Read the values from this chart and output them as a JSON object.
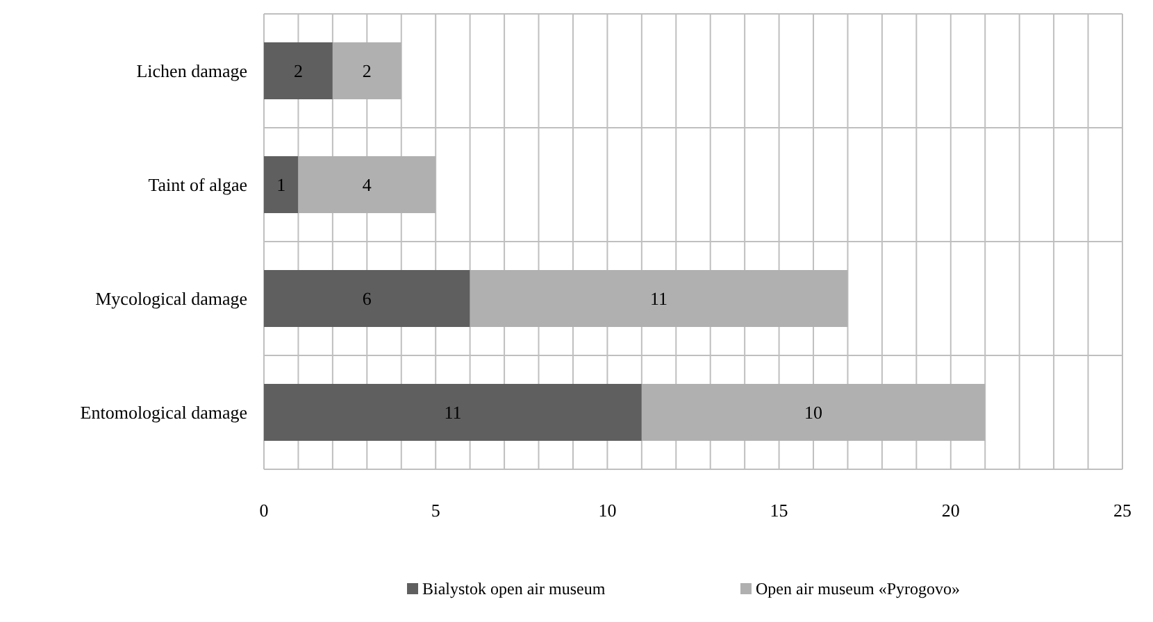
{
  "chart_data": {
    "type": "bar",
    "orientation": "horizontal",
    "stacked": true,
    "categories": [
      "Lichen damage",
      "Taint of algae",
      "Mycological damage",
      "Entomological damage"
    ],
    "series": [
      {
        "name": "Bialystok open air museum",
        "color": "#5f5f5f",
        "values": [
          2,
          1,
          6,
          11
        ]
      },
      {
        "name": "Open air museum «Pyrogovo»",
        "color": "#b0b0b0",
        "values": [
          2,
          4,
          11,
          10
        ]
      }
    ],
    "xlim": [
      0,
      25
    ],
    "xticks": [
      0,
      {
        "value": 1,
        "label": null
      },
      {
        "value": 2,
        "label": null
      },
      {
        "value": 3,
        "label": null
      },
      {
        "value": 4,
        "label": null
      },
      5,
      {
        "value": 6,
        "label": null
      },
      {
        "value": 7,
        "label": null
      },
      {
        "value": 8,
        "label": null
      },
      {
        "value": 9,
        "label": null
      },
      10,
      {
        "value": 11,
        "label": null
      },
      {
        "value": 12,
        "label": null
      },
      {
        "value": 13,
        "label": null
      },
      {
        "value": 14,
        "label": null
      },
      15,
      {
        "value": 16,
        "label": null
      },
      {
        "value": 17,
        "label": null
      },
      {
        "value": 18,
        "label": null
      },
      {
        "value": 19,
        "label": null
      },
      20,
      {
        "value": 21,
        "label": null
      },
      {
        "value": 22,
        "label": null
      },
      {
        "value": 23,
        "label": null
      },
      {
        "value": 24,
        "label": null
      },
      25
    ],
    "grid": true,
    "data_labels": true,
    "legend": "bottom"
  }
}
